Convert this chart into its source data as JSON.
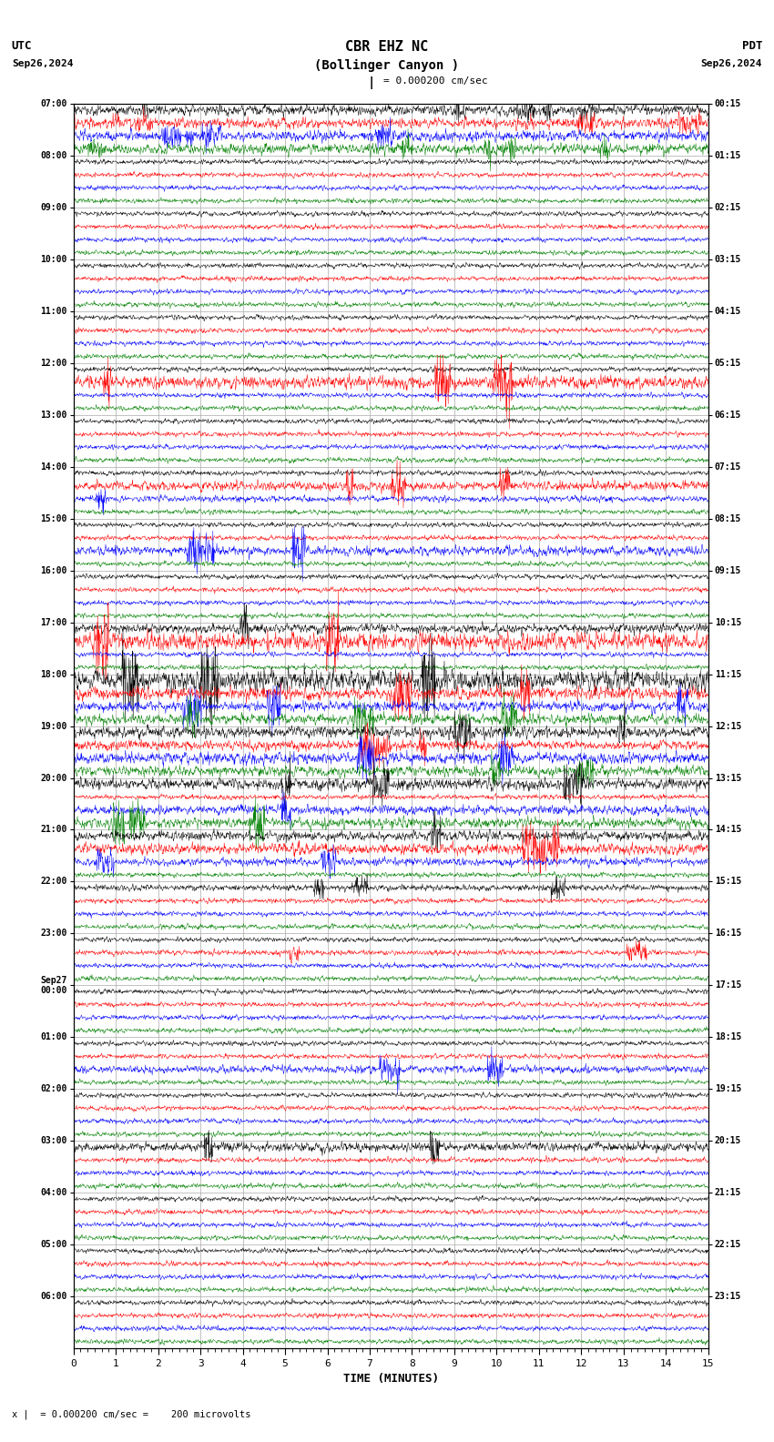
{
  "title_line1": "CBR EHZ NC",
  "title_line2": "(Bollinger Canyon )",
  "scale_label": "= 0.000200 cm/sec",
  "left_header": "UTC",
  "right_header": "PDT",
  "left_date": "Sep26,2024",
  "right_date": "Sep26,2024",
  "bottom_label": "TIME (MINUTES)",
  "bottom_note": "= 0.000200 cm/sec =    200 microvolts",
  "left_times": [
    "07:00",
    "08:00",
    "09:00",
    "10:00",
    "11:00",
    "12:00",
    "13:00",
    "14:00",
    "15:00",
    "16:00",
    "17:00",
    "18:00",
    "19:00",
    "20:00",
    "21:00",
    "22:00",
    "23:00",
    "Sep27\n00:00",
    "01:00",
    "02:00",
    "03:00",
    "04:00",
    "05:00",
    "06:00"
  ],
  "right_times": [
    "00:15",
    "01:15",
    "02:15",
    "03:15",
    "04:15",
    "05:15",
    "06:15",
    "07:15",
    "08:15",
    "09:15",
    "10:15",
    "11:15",
    "12:15",
    "13:15",
    "14:15",
    "15:15",
    "16:15",
    "17:15",
    "18:15",
    "19:15",
    "20:15",
    "21:15",
    "22:15",
    "23:15"
  ],
  "num_hours": 24,
  "traces_per_row": 4,
  "trace_colors": [
    "black",
    "red",
    "blue",
    "green"
  ],
  "xmin": 0,
  "xmax": 15,
  "background_color": "white",
  "grid_color": "#aaaaaa",
  "fig_width": 8.5,
  "fig_height": 15.84,
  "dpi": 100,
  "event_rows": {
    "0": {
      "colors": [
        0,
        1,
        2,
        3
      ],
      "amps": [
        0.25,
        0.3,
        0.2,
        0.15
      ]
    },
    "10": {
      "colors": [
        1,
        0
      ],
      "amps": [
        0.35,
        0.18
      ]
    },
    "11": {
      "colors": [
        0,
        1,
        2,
        3
      ],
      "amps": [
        0.4,
        0.25,
        0.2,
        0.2
      ]
    },
    "12": {
      "colors": [
        0,
        1,
        2,
        3
      ],
      "amps": [
        0.22,
        0.18,
        0.22,
        0.2
      ]
    },
    "14": {
      "colors": [
        1,
        0,
        2
      ],
      "amps": [
        0.22,
        0.18,
        0.15
      ]
    },
    "5": {
      "colors": [
        1
      ],
      "amps": [
        0.25
      ]
    },
    "7": {
      "colors": [
        1,
        2
      ],
      "amps": [
        0.18,
        0.12
      ]
    },
    "8": {
      "colors": [
        2
      ],
      "amps": [
        0.18
      ]
    },
    "13": {
      "colors": [
        0,
        2,
        3
      ],
      "amps": [
        0.22,
        0.18,
        0.2
      ]
    },
    "15": {
      "colors": [
        0
      ],
      "amps": [
        0.12
      ]
    },
    "16": {
      "colors": [
        1
      ],
      "amps": [
        0.1
      ]
    },
    "18": {
      "colors": [
        2
      ],
      "amps": [
        0.15
      ]
    },
    "20": {
      "colors": [
        0
      ],
      "amps": [
        0.18
      ]
    }
  }
}
